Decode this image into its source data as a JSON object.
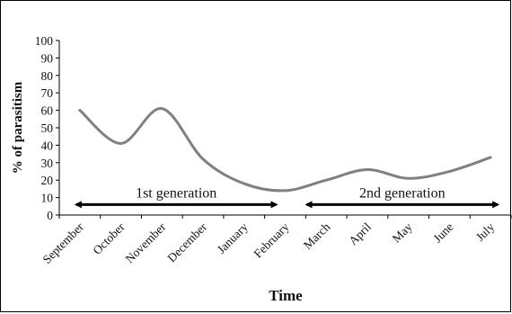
{
  "chart_data": {
    "type": "line",
    "title": "",
    "xlabel": "Time",
    "ylabel": "% of parasitism",
    "ylim": [
      0,
      100
    ],
    "yticks": [
      0,
      10,
      20,
      30,
      40,
      50,
      60,
      70,
      80,
      90,
      100
    ],
    "categories": [
      "September",
      "October",
      "November",
      "December",
      "January",
      "February",
      "March",
      "April",
      "May",
      "June",
      "July"
    ],
    "series": [
      {
        "values": [
          60,
          41,
          61,
          32,
          18,
          14,
          20,
          26,
          21,
          25,
          33
        ]
      }
    ],
    "annotations": [
      {
        "text": "1st generation",
        "from": "September",
        "to": "February"
      },
      {
        "text": "2nd generation",
        "from": "February",
        "to": "July"
      }
    ],
    "grid": false,
    "legend": "none",
    "line_color": "#808080"
  }
}
